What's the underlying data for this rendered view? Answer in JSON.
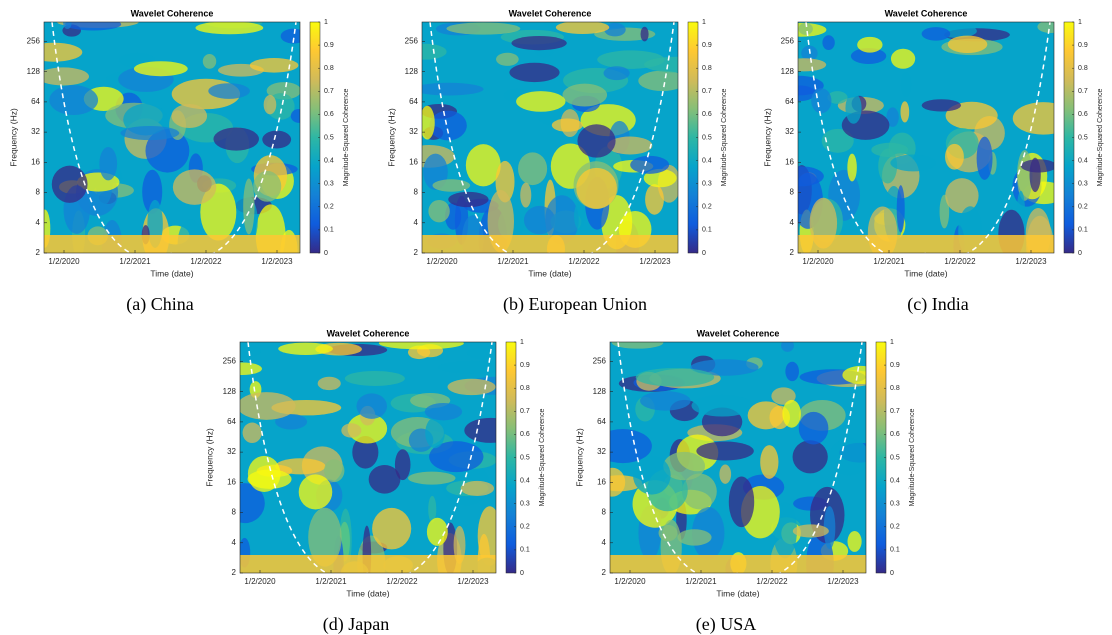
{
  "chart_data": [
    {
      "type": "heatmap",
      "title": "Wavelet Coherence",
      "x_label": "Time (date)",
      "y_label": "Frequency (Hz)",
      "colorbar_label": "Magnitude-Squared Coherence",
      "caption": "(a) China",
      "categories": [
        "1/2/2020",
        "1/2/2021",
        "1/2/2022",
        "1/2/2023"
      ],
      "log_scale": true,
      "ylim": [
        2,
        400
      ],
      "yticks": [
        2,
        4,
        8,
        16,
        32,
        64,
        128,
        256
      ],
      "colorbar_lim": [
        0,
        1
      ],
      "colorbar_ticks": [
        0,
        0.1,
        0.2,
        0.3,
        0.4,
        0.5,
        0.6,
        0.7,
        0.8,
        0.9,
        1
      ],
      "colormap": [
        "#352a87",
        "#0f5cdd",
        "#1481d6",
        "#06a4ca",
        "#2eb7a4",
        "#87bf77",
        "#d1bb59",
        "#fec832",
        "#f9fb0e"
      ]
    },
    {
      "type": "heatmap",
      "title": "Wavelet Coherence",
      "x_label": "Time (date)",
      "y_label": "Frequency (Hz)",
      "colorbar_label": "Magnitude-Squared Coherence",
      "caption": "(b) European Union",
      "categories": [
        "1/2/2020",
        "1/2/2021",
        "1/2/2022",
        "1/2/2023"
      ],
      "log_scale": true,
      "ylim": [
        2,
        400
      ],
      "yticks": [
        2,
        4,
        8,
        16,
        32,
        64,
        128,
        256
      ],
      "colorbar_lim": [
        0,
        1
      ],
      "colorbar_ticks": [
        0,
        0.1,
        0.2,
        0.3,
        0.4,
        0.5,
        0.6,
        0.7,
        0.8,
        0.9,
        1
      ],
      "colormap": [
        "#352a87",
        "#0f5cdd",
        "#1481d6",
        "#06a4ca",
        "#2eb7a4",
        "#87bf77",
        "#d1bb59",
        "#fec832",
        "#f9fb0e"
      ]
    },
    {
      "type": "heatmap",
      "title": "Wavelet Coherence",
      "x_label": "Time (date)",
      "y_label": "Frequency (Hz)",
      "colorbar_label": "Magnitude-Squared Coherence",
      "caption": "(c) India",
      "categories": [
        "1/2/2020",
        "1/2/2021",
        "1/2/2022",
        "1/2/2023"
      ],
      "log_scale": true,
      "ylim": [
        2,
        400
      ],
      "yticks": [
        2,
        4,
        8,
        16,
        32,
        64,
        128,
        256
      ],
      "colorbar_lim": [
        0,
        1
      ],
      "colorbar_ticks": [
        0,
        0.1,
        0.2,
        0.3,
        0.4,
        0.5,
        0.6,
        0.7,
        0.8,
        0.9,
        1
      ],
      "colormap": [
        "#352a87",
        "#0f5cdd",
        "#1481d6",
        "#06a4ca",
        "#2eb7a4",
        "#87bf77",
        "#d1bb59",
        "#fec832",
        "#f9fb0e"
      ]
    },
    {
      "type": "heatmap",
      "title": "Wavelet Coherence",
      "x_label": "Time (date)",
      "y_label": "Frequency (Hz)",
      "colorbar_label": "Magnitude-Squared Coherence",
      "caption": "(d) Japan",
      "categories": [
        "1/2/2020",
        "1/2/2021",
        "1/2/2022",
        "1/2/2023"
      ],
      "log_scale": true,
      "ylim": [
        2,
        400
      ],
      "yticks": [
        2,
        4,
        8,
        16,
        32,
        64,
        128,
        256
      ],
      "colorbar_lim": [
        0,
        1
      ],
      "colorbar_ticks": [
        0,
        0.1,
        0.2,
        0.3,
        0.4,
        0.5,
        0.6,
        0.7,
        0.8,
        0.9,
        1
      ],
      "colormap": [
        "#352a87",
        "#0f5cdd",
        "#1481d6",
        "#06a4ca",
        "#2eb7a4",
        "#87bf77",
        "#d1bb59",
        "#fec832",
        "#f9fb0e"
      ]
    },
    {
      "type": "heatmap",
      "title": "Wavelet Coherence",
      "x_label": "Time (date)",
      "y_label": "Frequency (Hz)",
      "colorbar_label": "Magnitude-Squared Coherence",
      "caption": "(e) USA",
      "categories": [
        "1/2/2020",
        "1/2/2021",
        "1/2/2022",
        "1/2/2023"
      ],
      "log_scale": true,
      "ylim": [
        2,
        400
      ],
      "yticks": [
        2,
        4,
        8,
        16,
        32,
        64,
        128,
        256
      ],
      "colorbar_lim": [
        0,
        1
      ],
      "colorbar_ticks": [
        0,
        0.1,
        0.2,
        0.3,
        0.4,
        0.5,
        0.6,
        0.7,
        0.8,
        0.9,
        1
      ],
      "colormap": [
        "#352a87",
        "#0f5cdd",
        "#1481d6",
        "#06a4ca",
        "#2eb7a4",
        "#87bf77",
        "#d1bb59",
        "#fec832",
        "#f9fb0e"
      ]
    }
  ]
}
